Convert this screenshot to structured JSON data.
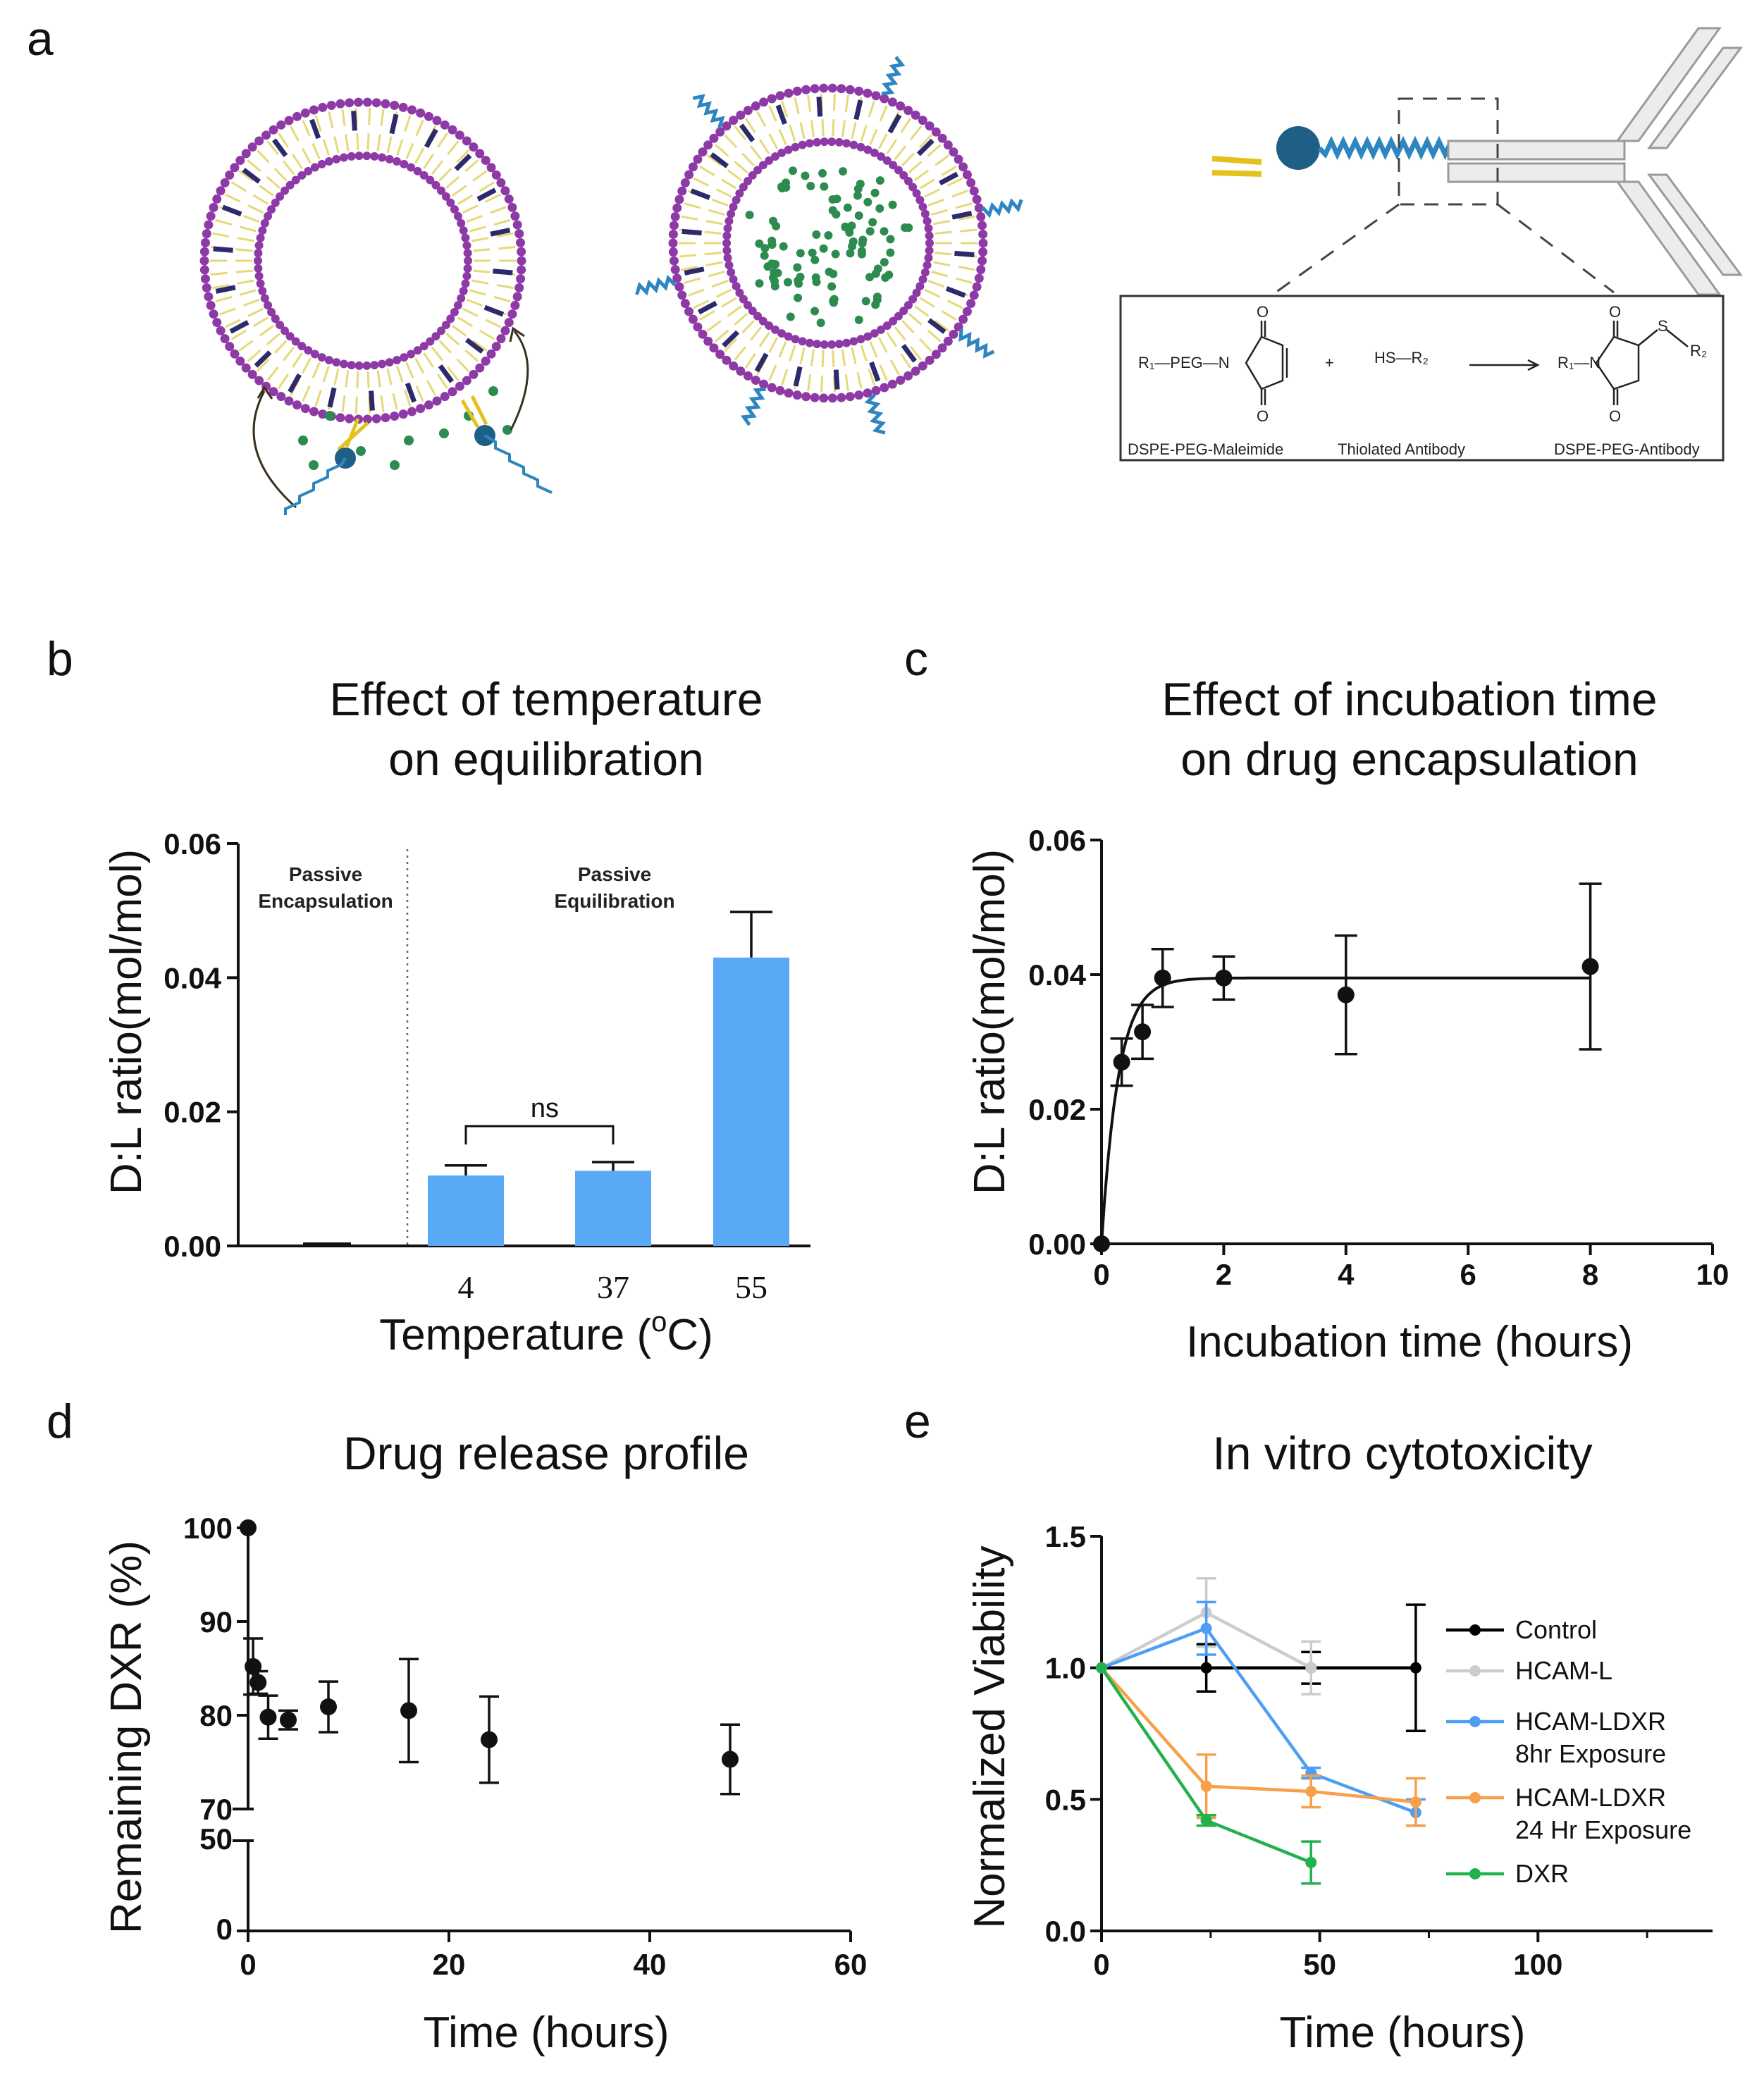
{
  "panel_labels": [
    "a",
    "b",
    "c",
    "d",
    "e"
  ],
  "schematic": {
    "reaction": {
      "reactant1": "R₁—PEG—N",
      "plus": "+",
      "reactant2": "HS—R₂",
      "product_r1": "R₁—N",
      "product_s": "S",
      "product_r2": "R₂",
      "o": "O",
      "name1": "DSPE-PEG-Maleimide",
      "name2": "Thiolated Antibody",
      "name3": "DSPE-PEG-Antibody"
    },
    "colors": {
      "head": "#8e3aa6",
      "tail": "#e6d97a",
      "cholesterol": "#2d2a6b",
      "drug": "#2e8b4f",
      "peg": "#2e86c1",
      "ball": "#1f5f86",
      "antibody": "#cfcfcf"
    }
  },
  "chart_data": [
    {
      "panel": "b",
      "type": "bar",
      "title": [
        "Effect of temperature",
        "on equilibration"
      ],
      "xlabel": "Temperature (",
      "xlabel_sup": "o",
      "xlabel_end": "C)",
      "ylabel": "D:L ratio(mol/mol)",
      "ylim": [
        0,
        0.06
      ],
      "yticks": [
        "0.00",
        "0.02",
        "0.04",
        "0.06"
      ],
      "categories": [
        "",
        "4",
        "37",
        "55"
      ],
      "values": [
        0.0005,
        0.0105,
        0.0112,
        0.043
      ],
      "errors": [
        0.0003,
        0.0015,
        0.0013,
        0.0068
      ],
      "bar_color": "#5aa9f7",
      "annotations": {
        "left_region": [
          "Passive",
          "Encapsulation"
        ],
        "right_region": [
          "Passive",
          "Equilibration"
        ],
        "significance": "ns"
      }
    },
    {
      "panel": "c",
      "type": "scatter",
      "title": [
        "Effect of incubation time",
        "on drug encapsulation"
      ],
      "xlabel": "Incubation time (hours)",
      "ylabel": "D:L ratio(mol/mol)",
      "xlim": [
        0,
        10
      ],
      "ylim": [
        0,
        0.06
      ],
      "xticks": [
        "0",
        "2",
        "4",
        "6",
        "8",
        "10"
      ],
      "yticks": [
        "0.00",
        "0.02",
        "0.04",
        "0.06"
      ],
      "points": {
        "x": [
          0,
          0.33,
          0.67,
          1,
          2,
          4,
          8
        ],
        "y": [
          0,
          0.027,
          0.0315,
          0.0395,
          0.0395,
          0.037,
          0.0412
        ],
        "err": [
          0,
          0.0035,
          0.004,
          0.0043,
          0.0032,
          0.0088,
          0.0123
        ]
      },
      "fit": {
        "plateau": 0.0395,
        "k": 3.6
      }
    },
    {
      "panel": "d",
      "type": "scatter",
      "title": "Drug release profile",
      "xlabel": "Time (hours)",
      "ylabel": "Remaining DXR (%)",
      "xlim": [
        0,
        60
      ],
      "ylim_lower": [
        0,
        50
      ],
      "ylim_upper": [
        70,
        100
      ],
      "xticks": [
        "0",
        "20",
        "40",
        "60"
      ],
      "yticks_upper": [
        "70",
        "80",
        "90",
        "100"
      ],
      "yticks_lower": [
        "0",
        "50"
      ],
      "points": {
        "x": [
          0,
          0.5,
          1,
          2,
          4,
          8,
          16,
          24,
          48
        ],
        "y": [
          100,
          85.2,
          83.5,
          79.8,
          79.5,
          80.9,
          80.5,
          77.4,
          75.3
        ],
        "err": [
          0,
          3.0,
          1.2,
          2.3,
          1.0,
          2.7,
          5.5,
          4.6,
          3.7
        ]
      }
    },
    {
      "panel": "e",
      "type": "line",
      "title": "In vitro cytotoxicity",
      "xlabel": "Time (hours)",
      "ylabel": "Normalized Viability",
      "xlim": [
        0,
        140
      ],
      "ylim": [
        0,
        1.5
      ],
      "xticks": [
        "0",
        "50",
        "100"
      ],
      "yticks": [
        "0.0",
        "0.5",
        "1.0",
        "1.5"
      ],
      "series": [
        {
          "name": "Control",
          "color": "#000000",
          "x": [
            0,
            24,
            48,
            72
          ],
          "y": [
            1.0,
            1.0,
            1.0,
            1.0
          ],
          "err": [
            0,
            0.09,
            0.06,
            0.24
          ]
        },
        {
          "name": "HCAM-L",
          "color": "#cccccc",
          "x": [
            0,
            24,
            48
          ],
          "y": [
            1.0,
            1.21,
            1.0
          ],
          "err": [
            0,
            0.13,
            0.1
          ]
        },
        {
          "name": "HCAM-LDXR",
          "name2": "8hr Exposure",
          "color": "#4f9ef5",
          "x": [
            0,
            24,
            48,
            72
          ],
          "y": [
            1.0,
            1.15,
            0.6,
            0.45
          ],
          "err": [
            0,
            0.1,
            0.02,
            0.05
          ]
        },
        {
          "name": "HCAM-LDXR",
          "name2": "24 Hr Exposure",
          "color": "#f6a04a",
          "x": [
            0,
            24,
            48,
            72
          ],
          "y": [
            1.0,
            0.55,
            0.53,
            0.49
          ],
          "err": [
            0,
            0.12,
            0.06,
            0.09
          ]
        },
        {
          "name": "DXR",
          "color": "#22b14c",
          "x": [
            0,
            24,
            48
          ],
          "y": [
            1.0,
            0.42,
            0.26
          ],
          "err": [
            0,
            0.02,
            0.08
          ]
        }
      ]
    }
  ]
}
